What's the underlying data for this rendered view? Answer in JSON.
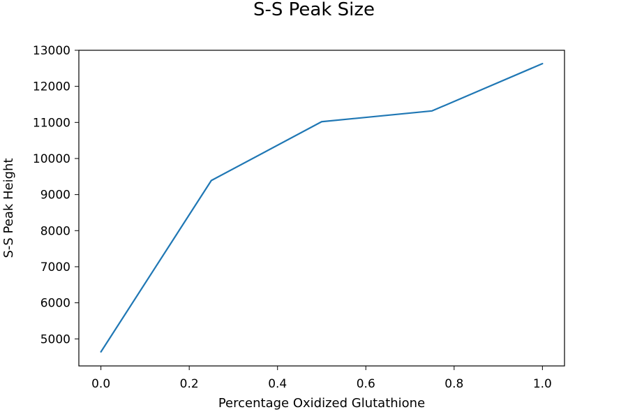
{
  "chart_data": {
    "type": "line",
    "title": "S-S Peak Size",
    "xlabel": "Percentage Oxidized Glutathione",
    "ylabel": "S-S Peak Height",
    "xlim": [
      -0.05,
      1.05
    ],
    "ylim": [
      4250,
      13000
    ],
    "xticks": [
      0.0,
      0.2,
      0.4,
      0.6,
      0.8,
      1.0
    ],
    "xtick_labels": [
      "0.0",
      "0.2",
      "0.4",
      "0.6",
      "0.8",
      "1.0"
    ],
    "yticks": [
      5000,
      6000,
      7000,
      8000,
      9000,
      10000,
      11000,
      12000,
      13000
    ],
    "ytick_labels": [
      "5000",
      "6000",
      "7000",
      "8000",
      "9000",
      "10000",
      "11000",
      "12000",
      "13000"
    ],
    "grid": false,
    "series": [
      {
        "color": "#1f77b4",
        "x": [
          0.0,
          0.25,
          0.5,
          0.75,
          1.0
        ],
        "y": [
          4640,
          9390,
          11020,
          11320,
          12630
        ]
      }
    ]
  }
}
